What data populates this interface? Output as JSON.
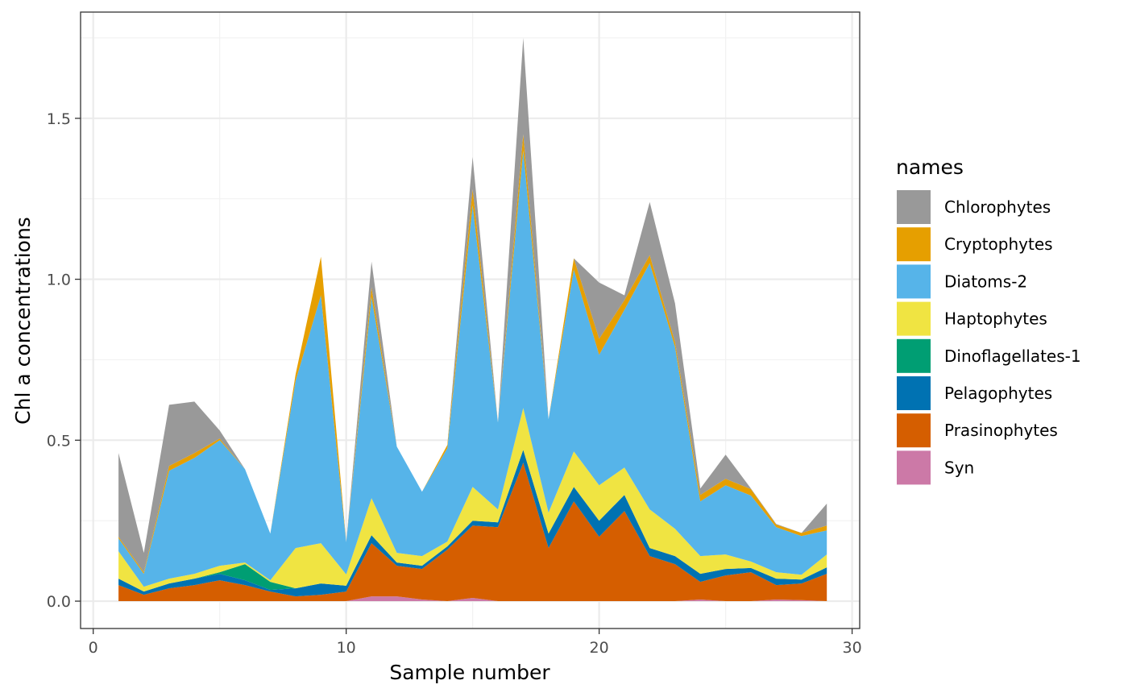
{
  "chart_data": {
    "type": "area",
    "stacked": true,
    "xlabel": "Sample number",
    "ylabel": "Chl a concentrations",
    "xlim": [
      -0.5,
      30.3
    ],
    "ylim": [
      -0.085,
      1.83
    ],
    "xticks": [
      0,
      10,
      20,
      30
    ],
    "yticks": [
      0.0,
      0.5,
      1.0,
      1.5
    ],
    "ytick_labels": [
      "0.0",
      "0.5",
      "1.0",
      "1.5"
    ],
    "grid": true,
    "legend_title": "names",
    "legend_position": "right",
    "x": [
      1,
      2,
      3,
      4,
      5,
      6,
      7,
      8,
      9,
      10,
      11,
      12,
      13,
      14,
      15,
      16,
      17,
      18,
      19,
      20,
      21,
      22,
      23,
      24,
      25,
      26,
      27,
      28,
      29
    ],
    "series": [
      {
        "name": "Syn",
        "color": "#CC79A7",
        "values": [
          0,
          0,
          0,
          0,
          0,
          0,
          0,
          0,
          0,
          0,
          0.015,
          0.015,
          0.005,
          0,
          0.01,
          0,
          0,
          0,
          0,
          0,
          0,
          0,
          0,
          0.005,
          0,
          0,
          0.005,
          0.003,
          0
        ]
      },
      {
        "name": "Prasinophytes",
        "color": "#D55E00",
        "values": [
          0.05,
          0.02,
          0.04,
          0.05,
          0.065,
          0.05,
          0.03,
          0.015,
          0.02,
          0.03,
          0.165,
          0.095,
          0.095,
          0.16,
          0.225,
          0.23,
          0.43,
          0.165,
          0.31,
          0.2,
          0.28,
          0.14,
          0.115,
          0.055,
          0.08,
          0.09,
          0.045,
          0.052,
          0.085
        ]
      },
      {
        "name": "Pelagophytes",
        "color": "#0072B2",
        "values": [
          0.02,
          0.01,
          0.015,
          0.02,
          0.02,
          0.015,
          0.005,
          0.025,
          0.035,
          0.018,
          0.025,
          0.01,
          0.01,
          0.01,
          0.015,
          0.015,
          0.04,
          0.045,
          0.045,
          0.05,
          0.05,
          0.025,
          0.025,
          0.025,
          0.02,
          0.013,
          0.02,
          0.012,
          0.02
        ]
      },
      {
        "name": "Dinoflagellates-1",
        "color": "#009E73",
        "values": [
          0,
          0,
          0,
          0,
          0.005,
          0.05,
          0.025,
          0,
          0,
          0,
          0,
          0,
          0,
          0,
          0,
          0,
          0,
          0,
          0,
          0,
          0,
          0,
          0,
          0,
          0,
          0,
          0,
          0,
          0
        ]
      },
      {
        "name": "Haptophytes",
        "color": "#F0E442",
        "values": [
          0.085,
          0.015,
          0.015,
          0.015,
          0.02,
          0.005,
          0.005,
          0.125,
          0.125,
          0.035,
          0.115,
          0.03,
          0.03,
          0.015,
          0.105,
          0.04,
          0.13,
          0.065,
          0.11,
          0.11,
          0.085,
          0.12,
          0.085,
          0.055,
          0.045,
          0.02,
          0.02,
          0.015,
          0.04
        ]
      },
      {
        "name": "Diatoms-2",
        "color": "#56B4E9",
        "values": [
          0.04,
          0.04,
          0.335,
          0.36,
          0.39,
          0.29,
          0.145,
          0.52,
          0.77,
          0.1,
          0.625,
          0.33,
          0.2,
          0.29,
          0.875,
          0.27,
          0.8,
          0.29,
          0.565,
          0.405,
          0.49,
          0.765,
          0.565,
          0.17,
          0.215,
          0.205,
          0.14,
          0.12,
          0.075
        ]
      },
      {
        "name": "Cryptophytes",
        "color": "#E69F00",
        "values": [
          0.005,
          0.005,
          0.015,
          0.015,
          0.005,
          0,
          0,
          0.02,
          0.12,
          0,
          0.03,
          0,
          0,
          0.01,
          0.05,
          0,
          0.05,
          0,
          0.035,
          0.05,
          0.03,
          0.025,
          0.015,
          0.02,
          0.02,
          0.02,
          0.008,
          0.01,
          0.015
        ]
      },
      {
        "name": "Chlorophytes",
        "color": "#999999",
        "values": [
          0.26,
          0.06,
          0.19,
          0.16,
          0.025,
          0.0,
          0.0,
          0.0,
          0.0,
          0.0,
          0.08,
          0.0,
          0.0,
          0.0,
          0.1,
          0.0,
          0.3,
          0.0,
          0.0,
          0.175,
          0.015,
          0.165,
          0.12,
          0.02,
          0.075,
          0.002,
          0.002,
          0.0,
          0.068
        ]
      }
    ]
  }
}
